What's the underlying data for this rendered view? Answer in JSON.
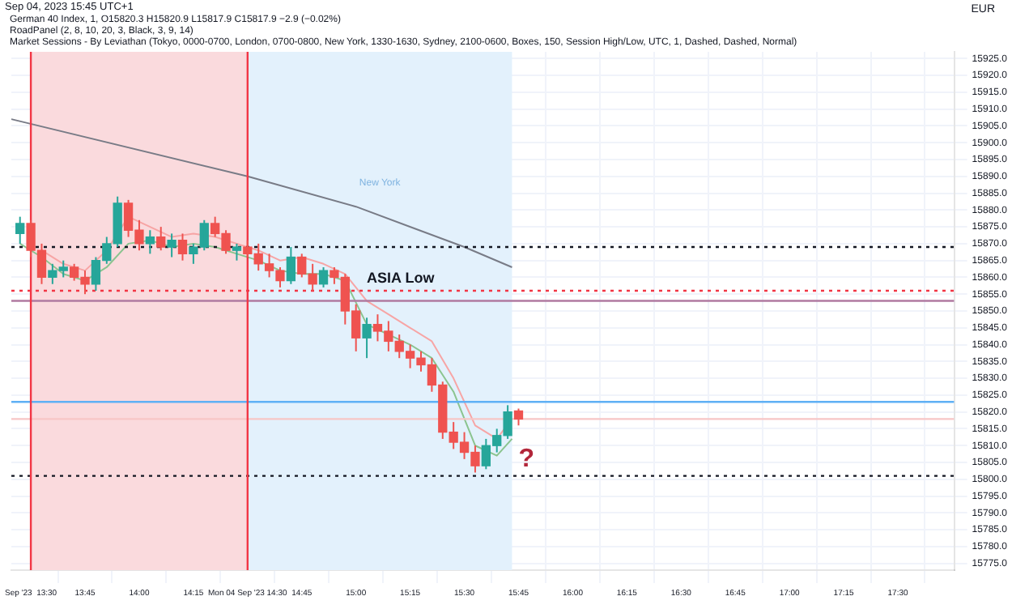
{
  "chart_data": {
    "type": "candlestick",
    "annotations": [
      "Sep 04, 2023 15:45 UTC+1",
      "German 40 Index, 1, O15820.3 H15820.9 L15817.9 C15817.9 −2.9 (−0.02%)",
      "RoadPanel (2, 8, 10, 20, 3, Black, 3, 9, 14)",
      "Market Sessions - By Leviathan (Tokyo, 0000-0700, London, 0700-0800, New York, 1330-1630, Sydney, 2100-0600, Boxes, 150, Session High/Low, UTC, 1, Dashed, Dashed, Normal)",
      {
        "text": "?",
        "x": 15.75,
        "y": 15802
      }
    ],
    "ylabel": "EUR",
    "x": [
      13.45,
      13.5,
      13.55,
      13.6,
      13.65,
      13.7,
      13.75,
      13.8,
      13.85,
      13.9,
      13.95,
      14.0,
      14.05,
      14.1,
      14.15,
      14.2,
      14.25,
      14.3,
      14.35,
      14.4,
      14.45,
      14.5,
      14.55,
      14.6,
      14.65,
      14.7,
      14.75,
      14.8,
      14.85,
      14.9,
      14.95,
      15.0,
      15.05,
      15.1,
      15.15,
      15.2,
      15.25,
      15.3,
      15.35,
      15.4,
      15.45,
      15.5,
      15.55,
      15.6,
      15.65,
      15.7,
      15.75
    ],
    "ohlc": [
      [
        15873,
        15878,
        15870,
        15876
      ],
      [
        15876,
        15877,
        15866,
        15868
      ],
      [
        15868,
        15870,
        15858,
        15860
      ],
      [
        15860,
        15864,
        15858,
        15862
      ],
      [
        15862,
        15865,
        15860,
        15863
      ],
      [
        15863,
        15864,
        15859,
        15860
      ],
      [
        15860,
        15862,
        15855,
        15858
      ],
      [
        15858,
        15866,
        15856,
        15865
      ],
      [
        15865,
        15872,
        15864,
        15870
      ],
      [
        15870,
        15884,
        15869,
        15882
      ],
      [
        15882,
        15883,
        15872,
        15874
      ],
      [
        15874,
        15877,
        15868,
        15870
      ],
      [
        15870,
        15874,
        15867,
        15872
      ],
      [
        15872,
        15875,
        15868,
        15869
      ],
      [
        15869,
        15873,
        15866,
        15871
      ],
      [
        15871,
        15873,
        15865,
        15867
      ],
      [
        15867,
        15870,
        15864,
        15869
      ],
      [
        15869,
        15877,
        15868,
        15876
      ],
      [
        15876,
        15878,
        15872,
        15873
      ],
      [
        15873,
        15874,
        15867,
        15868
      ],
      [
        15868,
        15870,
        15865,
        15869
      ],
      [
        15869,
        15871,
        15866,
        15867
      ],
      [
        15867,
        15870,
        15862,
        15864
      ],
      [
        15864,
        15867,
        15860,
        15862
      ],
      [
        15862,
        15863,
        15857,
        15859
      ],
      [
        15859,
        15869,
        15858,
        15866
      ],
      [
        15866,
        15867,
        15860,
        15861
      ],
      [
        15861,
        15864,
        15856,
        15858
      ],
      [
        15858,
        15863,
        15857,
        15862
      ],
      [
        15862,
        15863,
        15858,
        15860
      ],
      [
        15860,
        15861,
        15846,
        15850
      ],
      [
        15850,
        15852,
        15838,
        15842
      ],
      [
        15842,
        15848,
        15836,
        15846
      ],
      [
        15846,
        15849,
        15841,
        15844
      ],
      [
        15844,
        15847,
        15838,
        15841
      ],
      [
        15841,
        15843,
        15836,
        15838
      ],
      [
        15838,
        15840,
        15833,
        15836
      ],
      [
        15836,
        15838,
        15832,
        15834
      ],
      [
        15834,
        15836,
        15826,
        15828
      ],
      [
        15828,
        15829,
        15812,
        15814
      ],
      [
        15814,
        15817,
        15809,
        15811
      ],
      [
        15811,
        15814,
        15806,
        15808
      ],
      [
        15808,
        15810,
        15802,
        15804
      ],
      [
        15804,
        15812,
        15803,
        15810
      ],
      [
        15810,
        15815,
        15808,
        15813
      ],
      [
        15813,
        15822,
        15812,
        15820
      ],
      [
        15820.3,
        15821,
        15816,
        15817.9
      ]
    ],
    "series": [
      {
        "type": "line",
        "color": "#787b86",
        "x": [
          13.41,
          14.5,
          15.0,
          15.5,
          15.72
        ],
        "values": [
          15907,
          15890,
          15881,
          15869,
          15863
        ]
      },
      {
        "type": "line",
        "color": "#f7a5a5",
        "x": [
          13.55,
          13.65,
          13.75,
          13.85,
          13.95,
          14.05,
          14.15,
          14.25,
          14.35,
          14.45,
          14.55,
          14.65,
          14.75,
          14.85,
          14.95,
          15.05,
          15.15,
          15.25,
          15.35,
          15.45,
          15.55,
          15.65,
          15.72
        ],
        "values": [
          15868,
          15864,
          15862,
          15868,
          15878,
          15875,
          15872,
          15873,
          15872,
          15870,
          15868,
          15865,
          15866,
          15864,
          15861,
          15853,
          15849,
          15845,
          15841,
          15830,
          15816,
          15812,
          15818
        ]
      },
      {
        "type": "line",
        "color": "#8bc48f",
        "x": [
          13.45,
          13.55,
          13.65,
          13.75,
          13.85,
          13.95,
          14.05,
          14.15,
          14.25,
          14.35,
          14.45,
          14.55,
          14.65,
          14.75,
          14.85,
          14.95,
          15.05,
          15.15,
          15.25,
          15.35,
          15.45,
          15.55,
          15.65,
          15.72
        ],
        "values": [
          15870,
          15866,
          15861,
          15859,
          15863,
          15870,
          15871,
          15869,
          15870,
          15869,
          15867,
          15865,
          15862,
          15861,
          15861,
          15859,
          15846,
          15843,
          15840,
          15836,
          15826,
          15810,
          15807,
          15812
        ]
      }
    ],
    "ref_lines": [
      {
        "axis": "x",
        "value": 13.5,
        "color": "#f23645",
        "line_style": "solid"
      },
      {
        "axis": "x",
        "value": 14.5,
        "color": "#f23645",
        "line_style": "solid"
      },
      {
        "axis": "y",
        "value": 15869,
        "color": "#131722",
        "line_style": "dotted"
      },
      {
        "axis": "y",
        "value": 15856,
        "color": "#f23645",
        "line_style": "dotted",
        "label": "ASIA Low"
      },
      {
        "axis": "y",
        "value": 15853,
        "color": "#b07aa1",
        "line_style": "solid"
      },
      {
        "axis": "y",
        "value": 15823,
        "color": "#5fb0f5",
        "line_style": "solid"
      },
      {
        "axis": "y",
        "value": 15817.9,
        "color": "#f7c6c6",
        "line_style": "solid"
      },
      {
        "axis": "y",
        "value": 15801,
        "color": "#131722",
        "line_style": "dotted"
      }
    ],
    "bands": [
      {
        "axis": "x",
        "from": 13.5,
        "to": 14.5,
        "color": "#fadadd"
      },
      {
        "axis": "x",
        "from": 14.5,
        "to": 15.72,
        "color": "#e3f1fc",
        "label": "New York"
      }
    ],
    "xlim": [
      13.41,
      17.76
    ],
    "ylim": [
      15773,
      15927
    ],
    "xticks": [
      {
        "value": 13.5,
        "label": "Sep '23  13:30"
      },
      {
        "value": 13.75,
        "label": "13:45"
      },
      {
        "value": 14,
        "label": "14:00"
      },
      {
        "value": 14.25,
        "label": "14:15"
      },
      {
        "value": 14.5,
        "label": "Mon 04 Sep '23 14:30"
      },
      {
        "value": 14.75,
        "label": "14:45"
      },
      {
        "value": 15,
        "label": "15:00"
      },
      {
        "value": 15.25,
        "label": "15:15"
      },
      {
        "value": 15.5,
        "label": "15:30"
      },
      {
        "value": 15.75,
        "label": "15:45"
      },
      {
        "value": 16,
        "label": "16:00"
      },
      {
        "value": 16.25,
        "label": "16:15"
      },
      {
        "value": 16.5,
        "label": "16:30"
      },
      {
        "value": 16.75,
        "label": "16:45"
      },
      {
        "value": 17,
        "label": "17:00"
      },
      {
        "value": 17.25,
        "label": "17:15"
      },
      {
        "value": 17.5,
        "label": "17:30"
      }
    ],
    "yticks": [
      {
        "value": 15775,
        "label": "15775.0"
      },
      {
        "value": 15780,
        "label": "15780.0"
      },
      {
        "value": 15785,
        "label": "15785.0"
      },
      {
        "value": 15790,
        "label": "15790.0"
      },
      {
        "value": 15795,
        "label": "15795.0"
      },
      {
        "value": 15800,
        "label": "15800.0"
      },
      {
        "value": 15805,
        "label": "15805.0"
      },
      {
        "value": 15810,
        "label": "15810.0"
      },
      {
        "value": 15815,
        "label": "15815.0"
      },
      {
        "value": 15820,
        "label": "15820.0"
      },
      {
        "value": 15825,
        "label": "15825.0"
      },
      {
        "value": 15830,
        "label": "15830.0"
      },
      {
        "value": 15835,
        "label": "15835.0"
      },
      {
        "value": 15840,
        "label": "15840.0"
      },
      {
        "value": 15845,
        "label": "15845.0"
      },
      {
        "value": 15850,
        "label": "15850.0"
      },
      {
        "value": 15855,
        "label": "15855.0"
      },
      {
        "value": 15860,
        "label": "15860.0"
      },
      {
        "value": 15865,
        "label": "15865.0"
      },
      {
        "value": 15870,
        "label": "15870.0"
      },
      {
        "value": 15875,
        "label": "15875.0"
      },
      {
        "value": 15880,
        "label": "15880.0"
      },
      {
        "value": 15885,
        "label": "15885.0"
      },
      {
        "value": 15890,
        "label": "15890.0"
      },
      {
        "value": 15895,
        "label": "15895.0"
      },
      {
        "value": 15900,
        "label": "15900.0"
      },
      {
        "value": 15905,
        "label": "15905.0"
      },
      {
        "value": 15910,
        "label": "15910.0"
      },
      {
        "value": 15915,
        "label": "15915.0"
      },
      {
        "value": 15920,
        "label": "15920.0"
      },
      {
        "value": 15925,
        "label": "15925.0"
      }
    ],
    "grid": true,
    "legend": false
  }
}
